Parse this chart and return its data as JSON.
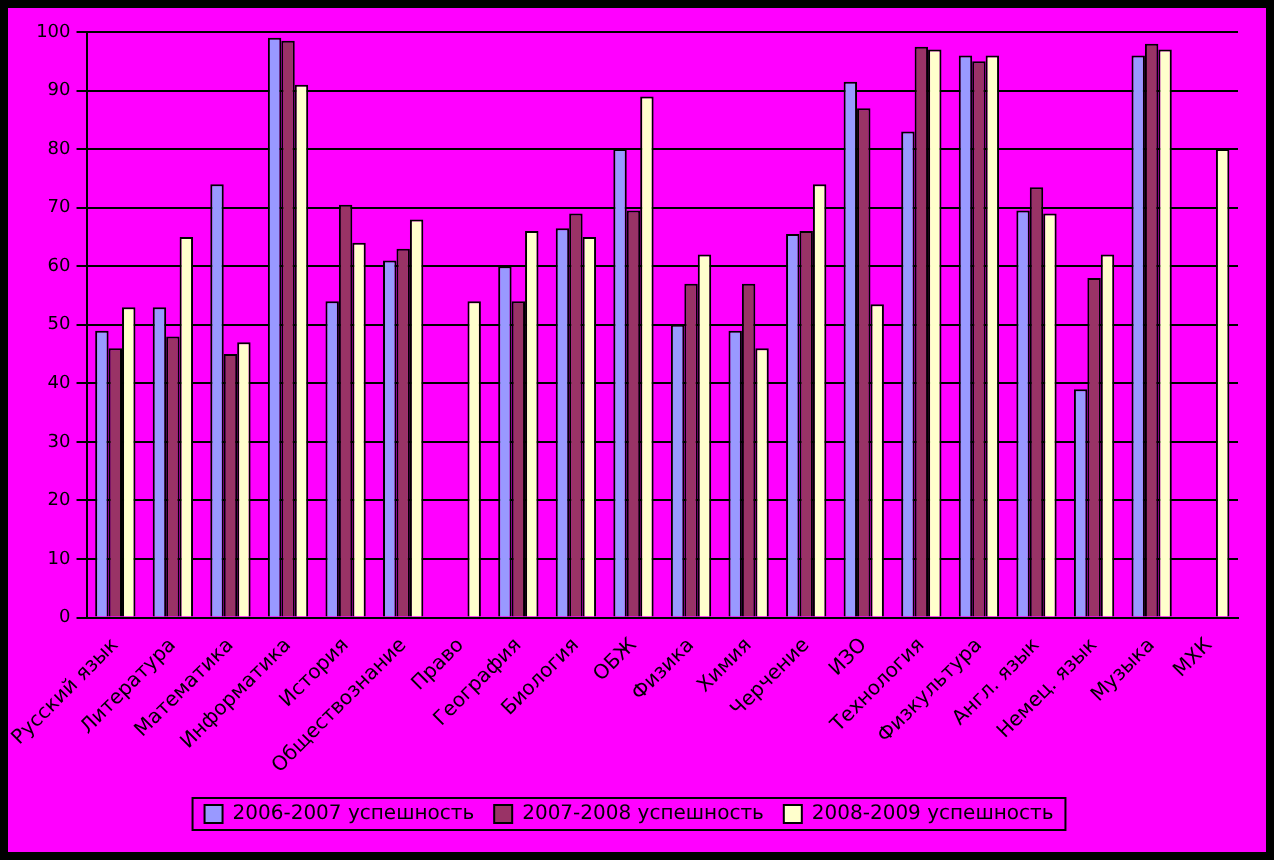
{
  "chart_data": {
    "type": "bar",
    "categories": [
      "Русский язык",
      "Литература",
      "Математика",
      "Информатика",
      "История",
      "Обществознание",
      "Право",
      "География",
      "Биология",
      "ОБЖ",
      "Физика",
      "Химия",
      "Черчение",
      "ИЗО",
      "Технология",
      "Физкультура",
      "Англ. язык",
      "Немец. язык",
      "Музыка",
      "МХК"
    ],
    "series": [
      {
        "name": "2006-2007 успешность",
        "color": "#9999ff",
        "values": [
          49,
          53,
          74,
          99,
          54,
          61,
          null,
          60,
          66.5,
          80,
          50,
          49,
          65.5,
          91.5,
          83,
          96,
          69.5,
          39,
          96,
          null
        ]
      },
      {
        "name": "2007-2008 успешность",
        "color": "#993366",
        "values": [
          46,
          48,
          45,
          98.5,
          70.5,
          63,
          null,
          54,
          69,
          69.5,
          57,
          57,
          66,
          87,
          97.5,
          95,
          73.5,
          58,
          98,
          null
        ]
      },
      {
        "name": "2008-2009 успешность",
        "color": "#ffffcc",
        "values": [
          53,
          65,
          47,
          91,
          64,
          68,
          54,
          66,
          65,
          89,
          62,
          46,
          74,
          53.5,
          97,
          96,
          69,
          62,
          97,
          80
        ]
      }
    ],
    "ylim": [
      0,
      100
    ],
    "yticks": [
      0,
      10,
      20,
      30,
      40,
      50,
      60,
      70,
      80,
      90,
      100
    ],
    "grid": "y",
    "legend": "bottom"
  }
}
